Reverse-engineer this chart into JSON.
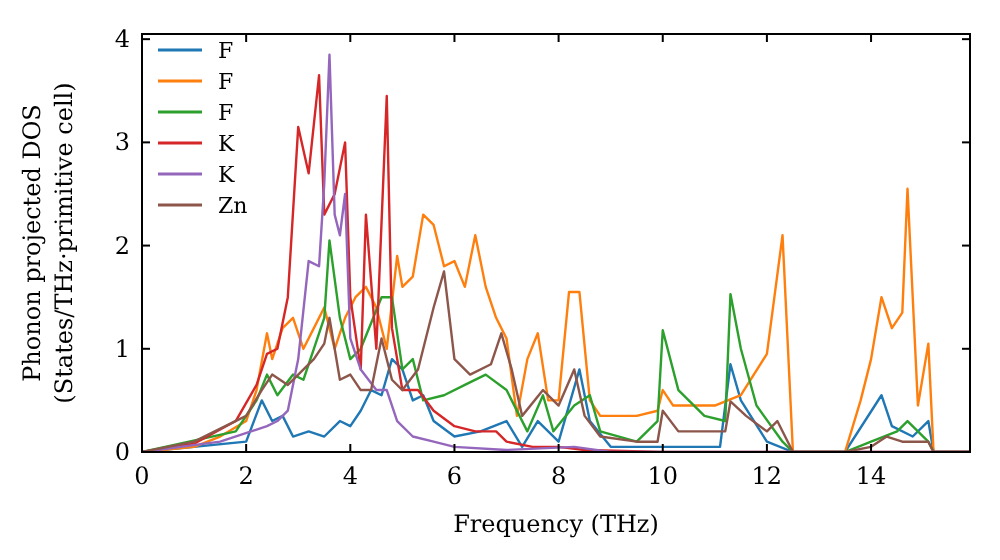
{
  "chart_data": {
    "type": "line",
    "xlabel": "Frequency (THz)",
    "ylabel": "Phonon projected DOS\n(States/THz·primitive cell)",
    "xlim": [
      0,
      15.9
    ],
    "ylim": [
      0,
      4.05
    ],
    "xticks": [
      0,
      2,
      4,
      6,
      8,
      10,
      12,
      14
    ],
    "yticks": [
      0,
      1,
      2,
      3,
      4
    ],
    "legend": "top left",
    "grid": false,
    "series": [
      {
        "name": "F",
        "color": "#1f77b4",
        "x": [
          0,
          2,
          2.3,
          2.5,
          2.7,
          2.9,
          3.2,
          3.5,
          3.8,
          4,
          4.2,
          4.4,
          4.6,
          4.8,
          5,
          5.2,
          5.4,
          5.6,
          6,
          6.5,
          7,
          7.3,
          7.6,
          8,
          8.4,
          8.6,
          9,
          11.1,
          11.3,
          11.5,
          12,
          12.5,
          13.5,
          14.2,
          14.4,
          14.8,
          15.1,
          15.2,
          15.9
        ],
        "values": [
          0,
          0.1,
          0.5,
          0.3,
          0.35,
          0.15,
          0.2,
          0.15,
          0.3,
          0.25,
          0.4,
          0.6,
          0.55,
          0.9,
          0.8,
          0.5,
          0.55,
          0.3,
          0.15,
          0.2,
          0.3,
          0.05,
          0.3,
          0.1,
          0.8,
          0.3,
          0.05,
          0.05,
          0.85,
          0.5,
          0.1,
          0,
          0,
          0.55,
          0.25,
          0.15,
          0.3,
          0,
          0
        ]
      },
      {
        "name": "F",
        "color": "#ff7f0e",
        "x": [
          0,
          1,
          1.5,
          2,
          2.2,
          2.4,
          2.5,
          2.7,
          2.9,
          3.1,
          3.3,
          3.5,
          3.7,
          3.9,
          4.1,
          4.3,
          4.5,
          4.7,
          4.9,
          5,
          5.2,
          5.4,
          5.6,
          5.8,
          6,
          6.2,
          6.4,
          6.6,
          6.8,
          7,
          7.2,
          7.4,
          7.6,
          7.8,
          8,
          8.2,
          8.4,
          8.6,
          8.8,
          9.5,
          9.9,
          10,
          10.2,
          11,
          11.5,
          12,
          12.3,
          12.5,
          13.5,
          13.8,
          14,
          14.2,
          14.4,
          14.6,
          14.7,
          14.9,
          15.1,
          15.2,
          15.9
        ],
        "values": [
          0,
          0.05,
          0.15,
          0.3,
          0.6,
          1.15,
          0.9,
          1.2,
          1.3,
          1,
          1.2,
          1.4,
          1,
          1.3,
          1.5,
          1.6,
          1.4,
          1,
          1.9,
          1.6,
          1.7,
          2.3,
          2.2,
          1.8,
          1.85,
          1.6,
          2.1,
          1.6,
          1.3,
          1.1,
          0.35,
          0.9,
          1.15,
          0.5,
          0.5,
          1.55,
          1.55,
          0.5,
          0.35,
          0.35,
          0.4,
          0.6,
          0.45,
          0.45,
          0.55,
          0.95,
          2.1,
          0,
          0,
          0.5,
          0.9,
          1.5,
          1.2,
          1.35,
          2.55,
          0.45,
          1.05,
          0,
          0
        ]
      },
      {
        "name": "F",
        "color": "#2ca02c",
        "x": [
          0,
          1.8,
          2.2,
          2.4,
          2.6,
          2.9,
          3.1,
          3.3,
          3.5,
          3.6,
          3.8,
          4,
          4.2,
          4.4,
          4.6,
          4.8,
          5,
          5.2,
          5.4,
          5.8,
          6.2,
          6.6,
          7,
          7.4,
          7.7,
          7.9,
          8.3,
          8.6,
          8.8,
          9.5,
          9.9,
          10,
          10.3,
          10.8,
          11.2,
          11.3,
          11.5,
          11.8,
          12.3,
          12.5,
          13.5,
          14,
          14.5,
          14.7,
          15.1,
          15.2,
          15.9
        ],
        "values": [
          0,
          0.2,
          0.5,
          0.75,
          0.55,
          0.75,
          0.7,
          1,
          1.3,
          2.05,
          1.3,
          0.9,
          1,
          1.25,
          1.5,
          1.5,
          0.8,
          0.9,
          0.5,
          0.55,
          0.65,
          0.75,
          0.6,
          0.2,
          0.55,
          0.2,
          0.45,
          0.55,
          0.2,
          0.1,
          0.3,
          1.18,
          0.6,
          0.35,
          0.3,
          1.53,
          1,
          0.45,
          0.1,
          0,
          0,
          0.1,
          0.2,
          0.3,
          0.1,
          0,
          0
        ]
      },
      {
        "name": "K",
        "color": "#d62728",
        "x": [
          0,
          1,
          1.8,
          2.2,
          2.4,
          2.6,
          2.8,
          3,
          3.2,
          3.4,
          3.5,
          3.7,
          3.9,
          4,
          4.2,
          4.3,
          4.5,
          4.7,
          4.8,
          5,
          5.3,
          5.6,
          6,
          6.4,
          6.8,
          7,
          7.5,
          8,
          8.5,
          10,
          15.9
        ],
        "values": [
          0,
          0.08,
          0.3,
          0.65,
          0.95,
          1,
          1.5,
          3.15,
          2.7,
          3.65,
          2.3,
          2.5,
          3,
          1.5,
          0.8,
          2.3,
          1,
          3.45,
          1.2,
          0.6,
          0.6,
          0.4,
          0.25,
          0.2,
          0.2,
          0.1,
          0.05,
          0.05,
          0.02,
          0,
          0
        ]
      },
      {
        "name": "K",
        "color": "#9467bd",
        "x": [
          0,
          1.5,
          2.4,
          2.6,
          2.8,
          3,
          3.2,
          3.4,
          3.5,
          3.6,
          3.7,
          3.8,
          3.9,
          4,
          4.2,
          4.5,
          4.7,
          4.9,
          5.2,
          5.6,
          6,
          7,
          8.3,
          9,
          15.9
        ],
        "values": [
          0,
          0.1,
          0.25,
          0.3,
          0.4,
          0.9,
          1.85,
          1.8,
          2.6,
          3.85,
          2.3,
          2.1,
          2.5,
          1.1,
          0.8,
          0.6,
          0.6,
          0.3,
          0.15,
          0.1,
          0.05,
          0.02,
          0.05,
          0,
          0
        ]
      },
      {
        "name": "Zn",
        "color": "#8c564b",
        "x": [
          0,
          1,
          1.6,
          2,
          2.3,
          2.5,
          2.8,
          3,
          3.3,
          3.5,
          3.6,
          3.8,
          4,
          4.2,
          4.4,
          4.6,
          4.8,
          5,
          5.3,
          5.6,
          5.8,
          6,
          6.3,
          6.7,
          6.9,
          7.1,
          7.3,
          7.7,
          8,
          8.3,
          8.5,
          8.8,
          9.5,
          9.9,
          10,
          10.3,
          11.2,
          11.3,
          11.6,
          12,
          12.2,
          12.5,
          13.5,
          14,
          14.3,
          14.6,
          15.1,
          15.2,
          15.9
        ],
        "values": [
          0,
          0.1,
          0.25,
          0.35,
          0.6,
          0.75,
          0.65,
          0.75,
          0.9,
          1.05,
          1.3,
          0.7,
          0.75,
          0.6,
          0.6,
          1.1,
          0.7,
          0.6,
          0.8,
          1.4,
          1.75,
          0.9,
          0.75,
          0.85,
          1.15,
          0.8,
          0.35,
          0.6,
          0.45,
          0.8,
          0.35,
          0.15,
          0.1,
          0.1,
          0.4,
          0.2,
          0.2,
          0.49,
          0.35,
          0.2,
          0.3,
          0,
          0,
          0.05,
          0.15,
          0.1,
          0.1,
          0,
          0
        ]
      }
    ]
  }
}
